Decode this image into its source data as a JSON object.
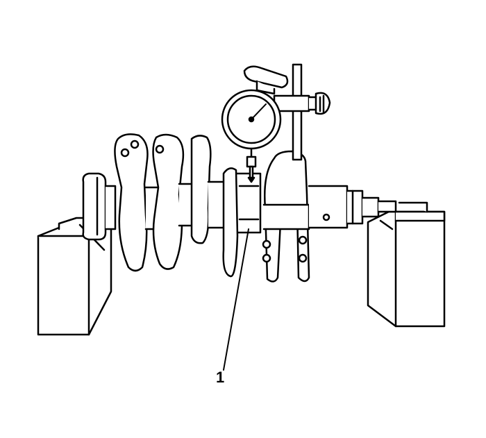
{
  "callouts": [
    {
      "label": "1"
    }
  ],
  "colors": {
    "line": "#000000",
    "fill": "#ffffff",
    "background": "#ffffff"
  }
}
